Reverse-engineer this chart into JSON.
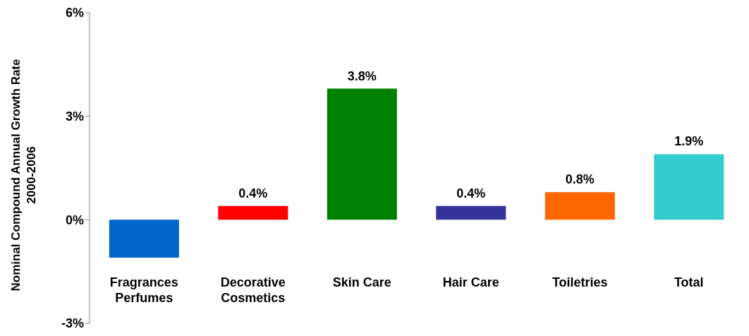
{
  "chart_data": {
    "type": "bar",
    "ylabel": "Nominal Compound Annual Growth Rate\n2000-2006",
    "categories": [
      "Fragrances\nPerfumes",
      "Decorative\nCosmetics",
      "Skin Care",
      "Hair Care",
      "Toiletries",
      "Total"
    ],
    "values": [
      -1.1,
      0.4,
      3.8,
      0.4,
      0.8,
      1.9
    ],
    "colors": [
      "#0066cc",
      "#ff0000",
      "#008000",
      "#333399",
      "#ff6600",
      "#33cccc"
    ],
    "value_labels": [
      null,
      "0.4%",
      "3.8%",
      "0.4%",
      "0.8%",
      "1.9%"
    ],
    "ylim": [
      -3,
      6
    ],
    "yticks": [
      {
        "value": -3,
        "label": "-3%"
      },
      {
        "value": 0,
        "label": "0%"
      },
      {
        "value": 3,
        "label": "3%"
      },
      {
        "value": 6,
        "label": "6%"
      }
    ],
    "grid": false
  }
}
